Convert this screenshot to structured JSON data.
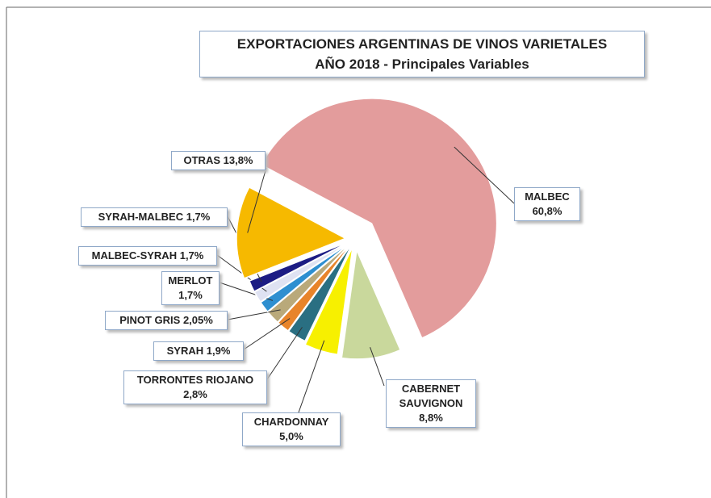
{
  "chart_data": {
    "type": "pie",
    "title": "EXPORTACIONES ARGENTINAS DE VINOS VARIETALES",
    "subtitle": "AÑO 2018 - Principales Variables",
    "categories": [
      "MALBEC",
      "CABERNET SAUVIGNON",
      "CHARDONNAY",
      "TORRONTES RIOJANO",
      "SYRAH",
      "PINOT GRIS",
      "MERLOT",
      "MALBEC-SYRAH",
      "SYRAH-MALBEC",
      "OTRAS"
    ],
    "values": [
      60.8,
      8.8,
      5.0,
      2.8,
      1.9,
      2.05,
      1.7,
      1.7,
      1.7,
      13.8
    ],
    "value_labels": [
      "60,8%",
      "8,8%",
      "5,0%",
      "2,8%",
      "1,9%",
      "2,05%",
      "1,7%",
      "1,7%",
      "1,7%",
      "13,8%"
    ],
    "colors": [
      "#e39c9c",
      "#c9d89c",
      "#f7f000",
      "#2a6f82",
      "#e8842a",
      "#b9a97a",
      "#2e8fd0",
      "#dfe2f2",
      "#1c1c84",
      "#f6b900"
    ]
  }
}
